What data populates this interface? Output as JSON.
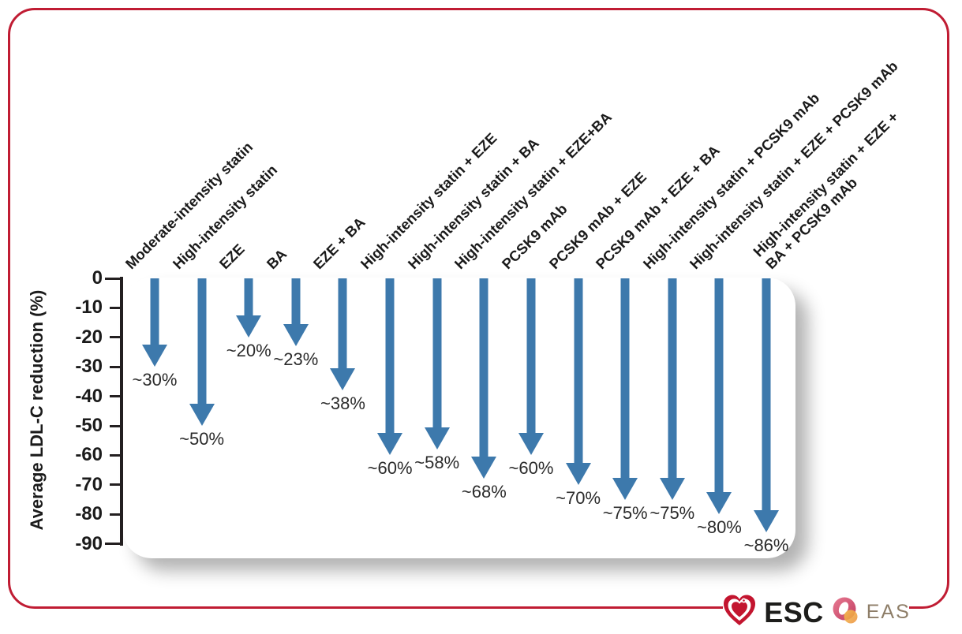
{
  "chart_data": {
    "type": "bar",
    "variant": "downward-arrows",
    "title": "",
    "ylabel": "Average LDL-C reduction (%)",
    "ylim": [
      0,
      -90
    ],
    "yticks": [
      0,
      -10,
      -20,
      -30,
      -40,
      -50,
      -60,
      -70,
      -80,
      -90
    ],
    "grid": false,
    "legend": null,
    "categories": [
      "Moderate-intensity statin",
      "High-intensity statin",
      "EZE",
      "BA",
      "EZE + BA",
      "High-intensity statin + EZE",
      "High-intensity statin + BA",
      "High-intensity statin + EZE+BA",
      "PCSK9 mAb",
      "PCSK9 mAb + EZE",
      "PCSK9 mAb + EZE + BA",
      "High-intensity statin + PCSK9 mAb",
      "High-intensity statin + EZE + PCSK9 mAb",
      "High-intensity statin + EZE + BA + PCSK9 mAb"
    ],
    "category_display_lines": [
      [
        "Moderate-intensity statin"
      ],
      [
        "High-intensity statin"
      ],
      [
        "EZE"
      ],
      [
        "BA"
      ],
      [
        "EZE + BA"
      ],
      [
        "High-intensity statin + EZE"
      ],
      [
        "High-intensity statin + BA"
      ],
      [
        "High-intensity statin + EZE+BA"
      ],
      [
        "PCSK9 mAb"
      ],
      [
        "PCSK9 mAb + EZE"
      ],
      [
        "PCSK9 mAb + EZE + BA"
      ],
      [
        "High-intensity statin + PCSK9 mAb"
      ],
      [
        "High-intensity statin + EZE + PCSK9 mAb"
      ],
      [
        "High-intensity statin + EZE +",
        "BA + PCSK9 mAb"
      ]
    ],
    "values": [
      -30,
      -50,
      -20,
      -23,
      -38,
      -60,
      -58,
      -68,
      -60,
      -70,
      -75,
      -75,
      -80,
      -86
    ],
    "value_labels": [
      "~30%",
      "~50%",
      "~20%",
      "~23%",
      "~38%",
      "~60%",
      "~58%",
      "~68%",
      "~60%",
      "~70%",
      "~75%",
      "~75%",
      "~80%",
      "~86%"
    ]
  },
  "colors": {
    "arrow": "#3d79ac",
    "border": "#c01c33",
    "axis": "#231f20",
    "esc_text": "#1d1d1b",
    "eas_text": "#8e7e68",
    "logo_red": "#c3152f",
    "logo_pink": "#d94f6e",
    "logo_gold": "#f2a94c"
  },
  "footer": {
    "esc_label": "ESC",
    "eas_label": "EAS"
  }
}
